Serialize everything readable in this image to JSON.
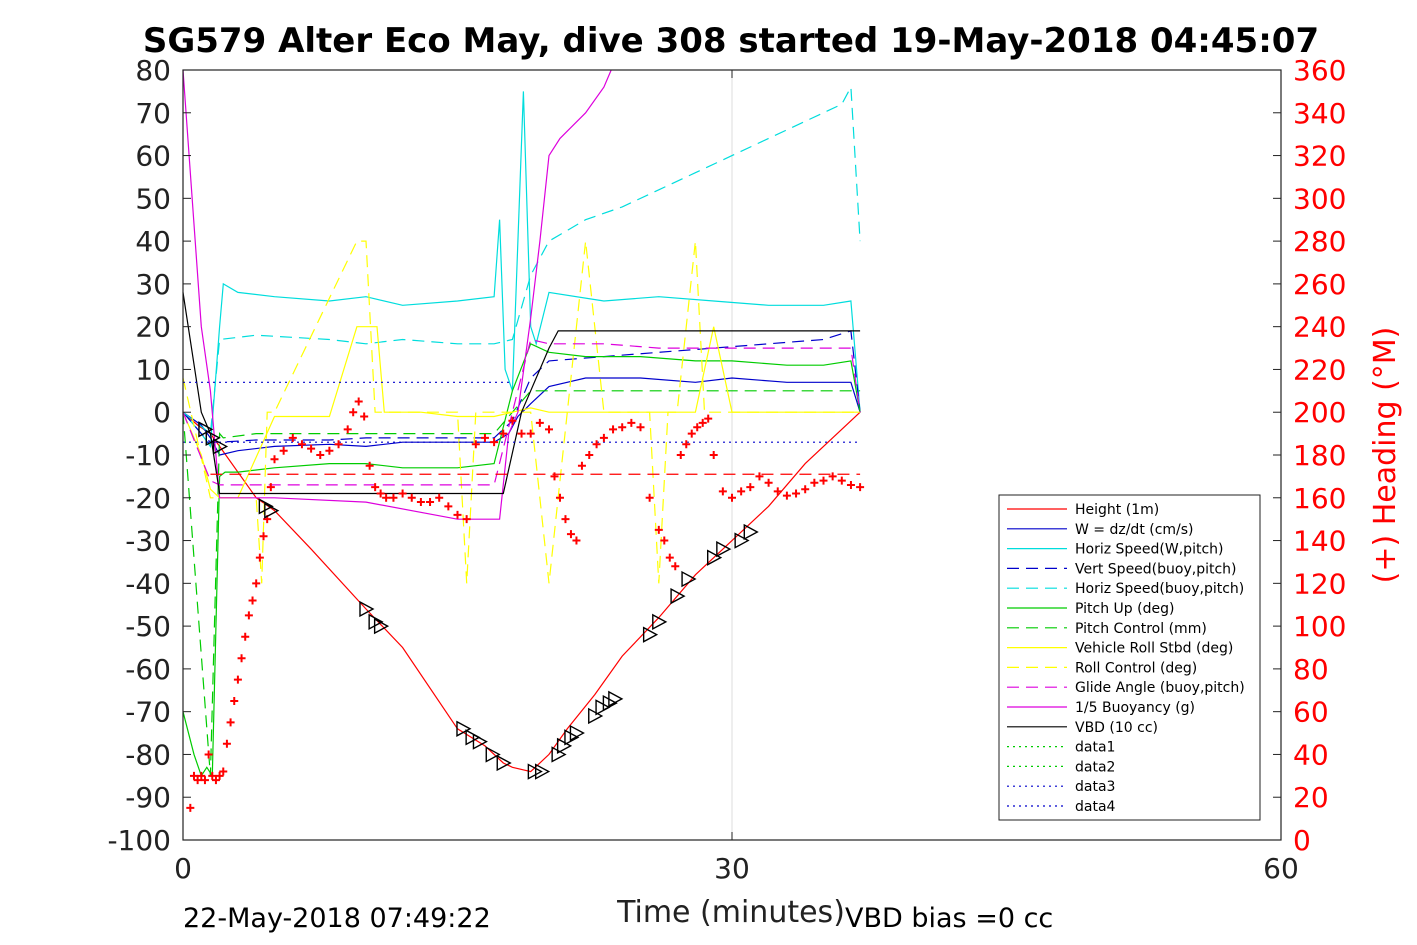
{
  "chart_data": {
    "type": "line",
    "title": "SG579 Alter Eco May, dive 308 started 19-May-2018 04:45:07",
    "xlabel": "Time (minutes)",
    "ylabel_right": "(+) Heading (°M)",
    "footer_left": "22-May-2018 07:49:22",
    "footer_right": "VBD bias =0 cc",
    "xlim": [
      0,
      60
    ],
    "ylim": [
      -100,
      80
    ],
    "ylim_right": [
      0,
      360
    ],
    "xticks": [
      "0",
      "30",
      "60"
    ],
    "yticks": [
      "80",
      "70",
      "60",
      "50",
      "40",
      "30",
      "20",
      "10",
      "0",
      "-10",
      "-20",
      "-30",
      "-40",
      "-50",
      "-60",
      "-70",
      "-80",
      "-90",
      "-100"
    ],
    "yticks_right": [
      "360",
      "340",
      "320",
      "300",
      "280",
      "260",
      "240",
      "220",
      "200",
      "180",
      "160",
      "140",
      "120",
      "100",
      "80",
      "60",
      "40",
      "20",
      "0"
    ],
    "grid": "x-only",
    "legend_position": "bottom-right",
    "series": [
      {
        "name": "Height (1m)",
        "color": "#ff0000",
        "style": "solid",
        "x": [
          0,
          0.8,
          1.5,
          2,
          4,
          5,
          7,
          10,
          12,
          15,
          16.5,
          17.5,
          18,
          19,
          20,
          21,
          22.5,
          24,
          26,
          28,
          30,
          32,
          34,
          37
        ],
        "y": [
          0,
          -3,
          -5,
          -8,
          -20,
          -23,
          -32,
          -46,
          -55,
          -74,
          -78,
          -82,
          -83,
          -84,
          -80,
          -74,
          -66,
          -57,
          -48,
          -38,
          -30,
          -22,
          -12,
          0
        ]
      },
      {
        "name": "W = dz/dt (cm/s)",
        "color": "#0000cc",
        "style": "solid",
        "x": [
          0,
          1,
          1.5,
          2,
          3,
          5,
          8,
          10,
          12,
          15,
          17,
          17.8,
          18.3,
          19,
          20,
          22,
          25,
          28,
          30,
          33,
          35,
          36.5,
          37
        ],
        "y": [
          0,
          -3,
          -6,
          -10,
          -9,
          -8,
          -7.5,
          -8,
          -7,
          -7,
          -7,
          -5,
          -1,
          2,
          6,
          8,
          8,
          7,
          8,
          7,
          7,
          7,
          0
        ]
      },
      {
        "name": "Horiz Speed(W,pitch)",
        "color": "#00dddd",
        "style": "solid",
        "x": [
          0,
          1,
          1.5,
          2,
          2.2,
          3,
          5,
          8,
          10,
          12,
          15,
          17,
          17.3,
          17.6,
          18,
          18.6,
          19,
          19.3,
          20,
          23,
          26,
          29,
          32,
          35,
          36.5,
          37
        ],
        "y": [
          0,
          -5,
          -8,
          20,
          30,
          28,
          27,
          26,
          27,
          25,
          26,
          27,
          45,
          10,
          5,
          75,
          20,
          16,
          28,
          26,
          27,
          26,
          25,
          25,
          26,
          0
        ]
      },
      {
        "name": "Vert Speed(buoy,pitch)",
        "color": "#0000cc",
        "style": "dashed",
        "x": [
          0,
          1,
          1.5,
          2,
          4,
          8,
          10,
          12,
          15,
          17,
          18,
          19,
          20,
          23,
          26,
          29,
          32,
          35,
          36.5,
          37
        ],
        "y": [
          0,
          -5,
          -7,
          -7,
          -6.5,
          -6.5,
          -6,
          -6,
          -6,
          -6,
          -2,
          8,
          12,
          13,
          14,
          15,
          16,
          17,
          19,
          0
        ]
      },
      {
        "name": "Horiz Speed(buoy,pitch)",
        "color": "#00dddd",
        "style": "dashed",
        "x": [
          0,
          1.5,
          2,
          4,
          8,
          10,
          12,
          15,
          17,
          18,
          19,
          20,
          22,
          24,
          26,
          28,
          30,
          32,
          34,
          36,
          36.5,
          37
        ],
        "y": [
          0,
          -5,
          17,
          18,
          17,
          16,
          17,
          16,
          16,
          17,
          32,
          40,
          45,
          48,
          52,
          56,
          60,
          64,
          68,
          72,
          76,
          40
        ]
      },
      {
        "name": "Pitch Up (deg)",
        "color": "#00cc00",
        "style": "solid",
        "x": [
          0,
          0.6,
          1,
          1.3,
          1.6,
          2,
          2.3,
          3,
          5,
          8,
          10,
          12,
          15,
          17,
          18,
          19,
          20,
          22,
          25,
          28,
          30,
          33,
          35,
          36.5,
          37
        ],
        "y": [
          -70,
          -80,
          -85,
          -83,
          -85,
          -15,
          -14,
          -14,
          -13,
          -12,
          -12,
          -13,
          -13,
          -12,
          5,
          16,
          14,
          13,
          13,
          12,
          12,
          11,
          11,
          12,
          0
        ]
      },
      {
        "name": "Pitch Control (mm)",
        "color": "#00cc00",
        "style": "dashed",
        "x": [
          0,
          1.5,
          2,
          2.2,
          4,
          8,
          10,
          12,
          15,
          17,
          18,
          19,
          20,
          23,
          26,
          29,
          32,
          35,
          37
        ],
        "y": [
          0,
          -85,
          -5,
          -6,
          -5,
          -5,
          -5,
          -5,
          -5,
          -5,
          0,
          5,
          5,
          5,
          5,
          5,
          5,
          5,
          5
        ]
      },
      {
        "name": "Vehicle Roll Stbd (deg)",
        "color": "#ffff00",
        "style": "solid",
        "x": [
          0,
          0.5,
          1,
          1.5,
          2,
          3,
          5,
          8,
          9.5,
          10,
          10.6,
          11,
          13,
          15,
          17,
          18,
          19,
          20,
          21,
          23,
          25,
          26,
          27,
          28,
          29,
          30,
          33,
          35,
          37
        ],
        "y": [
          0,
          -5,
          -10,
          -18,
          -20,
          -20,
          -1,
          -1,
          20,
          20,
          20,
          0,
          0,
          -1,
          -1,
          0,
          1,
          0,
          0,
          0,
          0,
          0,
          0,
          0,
          20,
          0,
          0,
          0,
          0
        ]
      },
      {
        "name": "Roll Control (deg)",
        "color": "#ffff00",
        "style": "dashed",
        "x": [
          0,
          0.7,
          1.5,
          2,
          4,
          4.3,
          4.6,
          5,
          9.5,
          10,
          10.5,
          11,
          15,
          15.5,
          16,
          17,
          19,
          20,
          21,
          22,
          23,
          25.5,
          26,
          26.5,
          27,
          28,
          28.5,
          29,
          30,
          37
        ],
        "y": [
          8,
          -5,
          -20,
          -20,
          -20,
          -40,
          0,
          0,
          40,
          40,
          0,
          0,
          0,
          -40,
          0,
          0,
          0,
          -40,
          0,
          40,
          0,
          0,
          -40,
          0,
          0,
          40,
          0,
          0,
          0,
          0
        ]
      },
      {
        "name": "Glide Angle (buoy,pitch)",
        "color": "#dd00dd",
        "style": "dashed",
        "x": [
          0,
          1.5,
          2,
          4,
          8,
          10,
          12,
          15,
          17,
          18,
          19,
          20,
          23,
          26,
          29,
          32,
          35,
          36.5,
          37
        ],
        "y": [
          0,
          -16,
          -17,
          -17,
          -17,
          -17,
          -17,
          -17,
          -17,
          0,
          17,
          16,
          16,
          15,
          15,
          15,
          15,
          15,
          0
        ]
      },
      {
        "name": "1/5 Buoyancy (g)",
        "color": "#dd00dd",
        "style": "solid",
        "x": [
          0,
          1,
          1.5,
          2,
          5,
          10,
          15,
          17.3,
          17.8,
          18.3,
          19,
          19.5,
          20,
          20.6,
          22,
          23,
          23.4
        ],
        "y": [
          80,
          20,
          5,
          -20,
          -20,
          -21,
          -25,
          -25,
          -5,
          0,
          22,
          40,
          60,
          64,
          70,
          76,
          80
        ]
      },
      {
        "name": "VBD (10 cc)",
        "color": "#000000",
        "style": "solid",
        "x": [
          0,
          1,
          1.5,
          2,
          5,
          10,
          15,
          17.5,
          18.5,
          19,
          19.5,
          20,
          20.5,
          25,
          30,
          35,
          37
        ],
        "y": [
          28,
          0,
          -5,
          -19,
          -19,
          -19,
          -19,
          -19,
          0,
          5,
          10,
          15,
          19,
          19,
          19,
          19,
          19
        ]
      },
      {
        "name": "data1",
        "color": "#00cc00",
        "style": "dotted",
        "x": [],
        "y": []
      },
      {
        "name": "data2",
        "color": "#00cc00",
        "style": "dotted",
        "x": [],
        "y": []
      },
      {
        "name": "data3",
        "color": "#0000cc",
        "style": "dotted",
        "x": [
          0,
          18
        ],
        "y": [
          7,
          7
        ]
      },
      {
        "name": "data4",
        "color": "#0000cc",
        "style": "dotted",
        "x": [
          0,
          37
        ],
        "y": [
          -7,
          -7
        ]
      }
    ],
    "reference_lines": [
      {
        "color": "#ff0000",
        "style": "dashed",
        "x": [
          1.5,
          37
        ],
        "y": [
          -14.5,
          -14.5
        ]
      }
    ],
    "heading_markers": {
      "color": "#ff0000",
      "axis": "right",
      "x": [
        0.4,
        0.6,
        0.8,
        1.0,
        1.2,
        1.4,
        1.6,
        1.8,
        2.0,
        2.2,
        2.4,
        2.6,
        2.8,
        3.0,
        3.2,
        3.4,
        3.6,
        3.8,
        4.0,
        4.2,
        4.4,
        4.6,
        4.8,
        5.0,
        5.5,
        6.0,
        6.5,
        7.0,
        7.5,
        8.0,
        8.5,
        9.0,
        9.3,
        9.6,
        9.9,
        10.2,
        10.5,
        10.8,
        11.1,
        11.5,
        12,
        12.5,
        13,
        13.5,
        14,
        14.5,
        15,
        15.5,
        16,
        16.5,
        17,
        17.5,
        18,
        18.5,
        19,
        19.5,
        20,
        20.3,
        20.6,
        20.9,
        21.2,
        21.5,
        21.8,
        22.2,
        22.6,
        23,
        23.5,
        24,
        24.5,
        25,
        25.5,
        26,
        26.3,
        26.6,
        26.9,
        27.2,
        27.5,
        27.8,
        28.1,
        28.4,
        28.7,
        29,
        29.5,
        30,
        30.5,
        31,
        31.5,
        32,
        32.5,
        33,
        33.5,
        34,
        34.5,
        35,
        35.5,
        36,
        36.5,
        37
      ],
      "y": [
        15,
        30,
        28,
        30,
        28,
        40,
        30,
        28,
        30,
        32,
        45,
        55,
        65,
        75,
        85,
        95,
        105,
        112,
        120,
        132,
        142,
        150,
        165,
        178,
        182,
        188,
        185,
        183,
        180,
        182,
        185,
        192,
        200,
        205,
        198,
        175,
        165,
        162,
        160,
        160,
        162,
        160,
        158,
        158,
        160,
        156,
        152,
        150,
        185,
        188,
        186,
        190,
        196,
        190,
        190,
        195,
        192,
        170,
        160,
        150,
        143,
        140,
        175,
        180,
        185,
        188,
        192,
        193,
        195,
        193,
        160,
        145,
        140,
        132,
        128,
        180,
        185,
        190,
        193,
        195,
        197,
        180,
        163,
        160,
        163,
        165,
        170,
        167,
        163,
        161,
        162,
        164,
        167,
        168,
        170,
        168,
        166,
        165
      ]
    },
    "triangle_markers": {
      "color": "#000000",
      "x": [
        1.2,
        1.6,
        2.0,
        4.5,
        4.8,
        10.0,
        10.5,
        10.8,
        15.3,
        15.8,
        16.2,
        16.9,
        17.5,
        19.2,
        19.6,
        20.5,
        20.8,
        21.2,
        21.5,
        22.5,
        22.9,
        23.3,
        23.6,
        25.5,
        26.0,
        27.0,
        27.6,
        29.0,
        29.5,
        30.5,
        31.0
      ],
      "y": [
        -4,
        -6,
        -8,
        -22,
        -23,
        -46,
        -49,
        -50,
        -74,
        -76,
        -77,
        -80,
        -82,
        -84,
        -84,
        -80,
        -78,
        -76,
        -75,
        -71,
        -69,
        -68,
        -67,
        -52,
        -49,
        -43,
        -39,
        -34,
        -32,
        -30,
        -28
      ]
    }
  }
}
